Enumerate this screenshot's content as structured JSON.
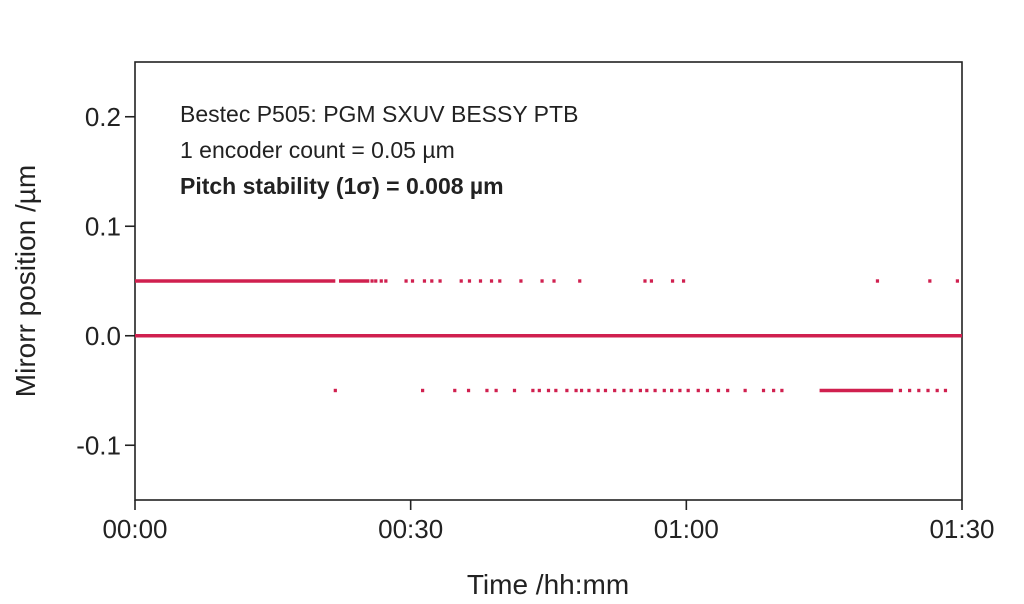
{
  "chart_data": {
    "type": "scatter",
    "title": "",
    "xlabel": "Time /hh:mm",
    "ylabel": "Mirorr position /µm",
    "xlim": [
      0,
      90
    ],
    "ylim": [
      -0.15,
      0.25
    ],
    "x_unit": "minutes",
    "x_ticks": [
      {
        "value": 0,
        "label": "00:00"
      },
      {
        "value": 30,
        "label": "00:30"
      },
      {
        "value": 60,
        "label": "01:00"
      },
      {
        "value": 90,
        "label": "01:30"
      }
    ],
    "y_ticks": [
      {
        "value": 0.2,
        "label": "0.2"
      },
      {
        "value": 0.1,
        "label": "0.1"
      },
      {
        "value": 0.0,
        "label": "0.0"
      },
      {
        "value": -0.1,
        "label": "-0.1"
      }
    ],
    "grid": false,
    "point_color": "#d0204f",
    "annotations": [
      {
        "text": "Bestec P505: PGM SXUV BESSY PTB",
        "bold": false
      },
      {
        "text": "1 encoder count = 0.05 µm",
        "bold": false
      },
      {
        "text": "Pitch stability (1σ) = 0.008 µm",
        "bold": true
      }
    ],
    "series": [
      {
        "y": 0.05,
        "segments": [
          [
            0,
            21.8
          ],
          [
            22.2,
            25.5
          ]
        ],
        "points": [
          25.8,
          26.2,
          26.8,
          27.3,
          29.5,
          30.2,
          31.5,
          32.3,
          33.2,
          35.5,
          36.4,
          37.6,
          38.8,
          39.7,
          42.0,
          44.3,
          45.6,
          48.4,
          55.5,
          56.2,
          58.5,
          59.7,
          80.8,
          86.5,
          89.5
        ]
      },
      {
        "y": 0.0,
        "segments": [
          [
            0,
            90
          ]
        ],
        "points": []
      },
      {
        "y": -0.05,
        "segments": [
          [
            74.5,
            82.5
          ]
        ],
        "points": [
          21.8,
          31.3,
          34.8,
          36.3,
          38.3,
          39.3,
          41.3,
          43.3,
          44.0,
          45.0,
          45.8,
          47.0,
          48.0,
          48.6,
          49.4,
          50.4,
          51.2,
          52.2,
          53.2,
          54.0,
          55.0,
          55.7,
          56.6,
          57.6,
          58.4,
          59.3,
          60.2,
          61.3,
          62.3,
          63.5,
          64.5,
          66.4,
          68.4,
          69.5,
          70.4,
          83.3,
          84.3,
          85.3,
          86.3,
          87.3,
          88.2
        ]
      }
    ]
  }
}
